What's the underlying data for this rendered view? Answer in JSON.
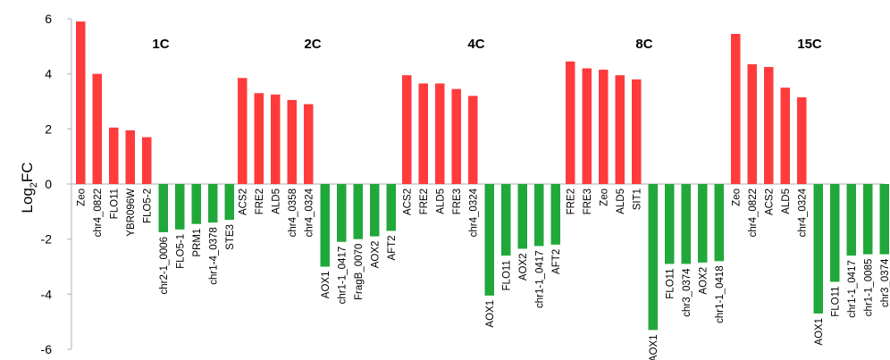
{
  "chart_data": {
    "type": "bar",
    "ylabel_main": "Log",
    "ylabel_sub": "2",
    "ylabel_tail": "FC",
    "ylim": [
      -6,
      6
    ],
    "yticks": [
      "6",
      "4",
      "2",
      "0",
      "-2",
      "-4",
      "-6"
    ],
    "grid": false,
    "colors": {
      "up": "#ff3b3b",
      "down": "#21a83a",
      "axis": "#bdbdbd"
    },
    "groups": [
      {
        "name": "1C",
        "up": [
          {
            "label": "Zeo",
            "value": 5.9
          },
          {
            "label": "chr4_0822",
            "value": 4.0
          },
          {
            "label": "FLO11",
            "value": 2.05
          },
          {
            "label": "YBR096W",
            "value": 1.95
          },
          {
            "label": "FLO5-2",
            "value": 1.7
          }
        ],
        "down": [
          {
            "label": "chr2-1_0006",
            "value": -1.75
          },
          {
            "label": "FLO5-1",
            "value": -1.65
          },
          {
            "label": "PRM1",
            "value": -1.45
          },
          {
            "label": "chr1-4_0378",
            "value": -1.4
          },
          {
            "label": "STE3",
            "value": -1.3
          }
        ]
      },
      {
        "name": "2C",
        "up": [
          {
            "label": "ACS2",
            "value": 3.85
          },
          {
            "label": "FRE2",
            "value": 3.3
          },
          {
            "label": "ALD5",
            "value": 3.25
          },
          {
            "label": "chr4_0358",
            "value": 3.05
          },
          {
            "label": "chr4_0324",
            "value": 2.9
          }
        ],
        "down": [
          {
            "label": "AOX1",
            "value": -3.0
          },
          {
            "label": "chr1-1_0417",
            "value": -2.1
          },
          {
            "label": "FragB_0070",
            "value": -2.0
          },
          {
            "label": "AOX2",
            "value": -1.9
          },
          {
            "label": "AFT2",
            "value": -1.7
          }
        ]
      },
      {
        "name": "4C",
        "up": [
          {
            "label": "ACS2",
            "value": 3.95
          },
          {
            "label": "FRE2",
            "value": 3.65
          },
          {
            "label": "ALD5",
            "value": 3.65
          },
          {
            "label": "FRE3",
            "value": 3.45
          },
          {
            "label": "chr4_0324",
            "value": 3.2
          }
        ],
        "down": [
          {
            "label": "AOX1",
            "value": -4.05
          },
          {
            "label": "FLO11",
            "value": -2.6
          },
          {
            "label": "AOX2",
            "value": -2.35
          },
          {
            "label": "chr1-1_0417",
            "value": -2.25
          },
          {
            "label": "AFT2",
            "value": -2.2
          }
        ]
      },
      {
        "name": "8C",
        "up": [
          {
            "label": "FRE2",
            "value": 4.45
          },
          {
            "label": "FRE3",
            "value": 4.2
          },
          {
            "label": "Zeo",
            "value": 4.15
          },
          {
            "label": "ALD5",
            "value": 3.95
          },
          {
            "label": "SIT1",
            "value": 3.8
          }
        ],
        "down": [
          {
            "label": "AOX1",
            "value": -5.3
          },
          {
            "label": "FLO11",
            "value": -2.9
          },
          {
            "label": "chr3_0374",
            "value": -2.9
          },
          {
            "label": "AOX2",
            "value": -2.85
          },
          {
            "label": "chr1-1_0418",
            "value": -2.8
          }
        ]
      },
      {
        "name": "15C",
        "up": [
          {
            "label": "Zeo",
            "value": 5.45
          },
          {
            "label": "chr4_0822",
            "value": 4.35
          },
          {
            "label": "ACS2",
            "value": 4.25
          },
          {
            "label": "ALD5",
            "value": 3.5
          },
          {
            "label": "chr4_0324",
            "value": 3.15
          }
        ],
        "down": [
          {
            "label": "AOX1",
            "value": -4.7
          },
          {
            "label": "FLO11",
            "value": -3.55
          },
          {
            "label": "chr1-1_0417",
            "value": -2.6
          },
          {
            "label": "chr1-1_0085",
            "value": -2.55
          },
          {
            "label": "chr3_0374",
            "value": -2.55
          }
        ]
      }
    ]
  }
}
